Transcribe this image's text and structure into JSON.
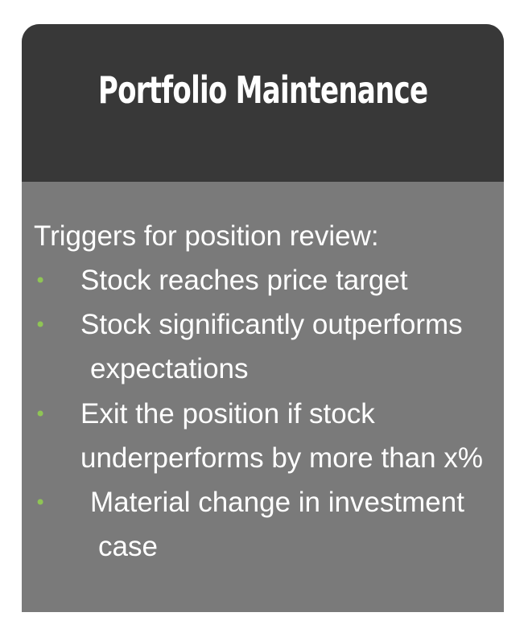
{
  "title": "Portfolio Maintenance",
  "intro": "Triggers for position review:",
  "bullet_glyph": "•",
  "bullet_color": "#8fc555",
  "items": [
    {
      "lines": [
        "Stock reaches price target"
      ]
    },
    {
      "lines": [
        "Stock significantly outperforms",
        "expectations"
      ]
    },
    {
      "lines": [
        "Exit the position if stock",
        "underperforms by more than x%"
      ]
    },
    {
      "lines": [
        "Material change in investment",
        "case"
      ]
    }
  ]
}
